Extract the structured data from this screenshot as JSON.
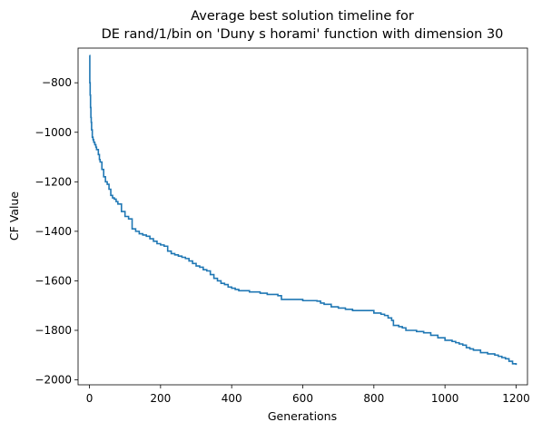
{
  "chart_data": {
    "type": "line",
    "title_lines": [
      "Average best solution timeline for",
      "DE rand/1/bin on 'Duny s horami' function with dimension 30"
    ],
    "xlabel": "Generations",
    "ylabel": "CF Value",
    "xlim": [
      -32,
      1232
    ],
    "ylim": [
      -2020,
      -660
    ],
    "xticks": [
      0,
      200,
      400,
      600,
      800,
      1000,
      1200
    ],
    "yticks": [
      -2000,
      -1800,
      -1600,
      -1400,
      -1200,
      -1000,
      -800
    ],
    "xtick_labels": [
      "0",
      "200",
      "400",
      "600",
      "800",
      "1000",
      "1200"
    ],
    "ytick_labels": [
      "−2000",
      "−1800",
      "−1600",
      "−1400",
      "−1200",
      "−1000",
      "−800"
    ],
    "grid": false,
    "series": [
      {
        "color": "#1f77b4",
        "x": [
          0,
          1,
          2,
          3,
          4,
          5,
          6,
          8,
          10,
          12,
          15,
          18,
          20,
          25,
          28,
          30,
          35,
          40,
          45,
          50,
          55,
          60,
          65,
          70,
          75,
          80,
          90,
          100,
          110,
          120,
          130,
          140,
          150,
          160,
          170,
          180,
          190,
          200,
          210,
          220,
          230,
          240,
          250,
          260,
          270,
          280,
          290,
          300,
          310,
          320,
          330,
          340,
          350,
          360,
          370,
          380,
          390,
          400,
          410,
          420,
          450,
          480,
          500,
          530,
          540,
          560,
          600,
          640,
          650,
          660,
          680,
          700,
          720,
          740,
          760,
          780,
          800,
          820,
          830,
          840,
          850,
          855,
          870,
          880,
          890,
          900,
          920,
          940,
          960,
          980,
          1000,
          1020,
          1030,
          1040,
          1050,
          1060,
          1070,
          1080,
          1100,
          1120,
          1140,
          1150,
          1160,
          1170,
          1180,
          1190,
          1200
        ],
        "y": [
          -690,
          -800,
          -850,
          -900,
          -940,
          -960,
          -990,
          -1020,
          -1030,
          -1040,
          -1050,
          -1060,
          -1070,
          -1090,
          -1110,
          -1120,
          -1150,
          -1180,
          -1200,
          -1210,
          -1230,
          -1255,
          -1265,
          -1270,
          -1280,
          -1290,
          -1320,
          -1340,
          -1350,
          -1390,
          -1400,
          -1410,
          -1415,
          -1420,
          -1430,
          -1440,
          -1450,
          -1455,
          -1460,
          -1480,
          -1490,
          -1495,
          -1500,
          -1505,
          -1510,
          -1520,
          -1530,
          -1540,
          -1545,
          -1555,
          -1560,
          -1575,
          -1590,
          -1600,
          -1610,
          -1615,
          -1625,
          -1630,
          -1635,
          -1640,
          -1645,
          -1650,
          -1655,
          -1660,
          -1675,
          -1675,
          -1680,
          -1682,
          -1690,
          -1695,
          -1705,
          -1710,
          -1715,
          -1720,
          -1720,
          -1720,
          -1730,
          -1735,
          -1740,
          -1750,
          -1760,
          -1780,
          -1785,
          -1790,
          -1800,
          -1800,
          -1805,
          -1810,
          -1820,
          -1830,
          -1840,
          -1845,
          -1850,
          -1855,
          -1860,
          -1870,
          -1875,
          -1880,
          -1890,
          -1895,
          -1900,
          -1905,
          -1910,
          -1915,
          -1925,
          -1935,
          -1940
        ]
      }
    ]
  }
}
